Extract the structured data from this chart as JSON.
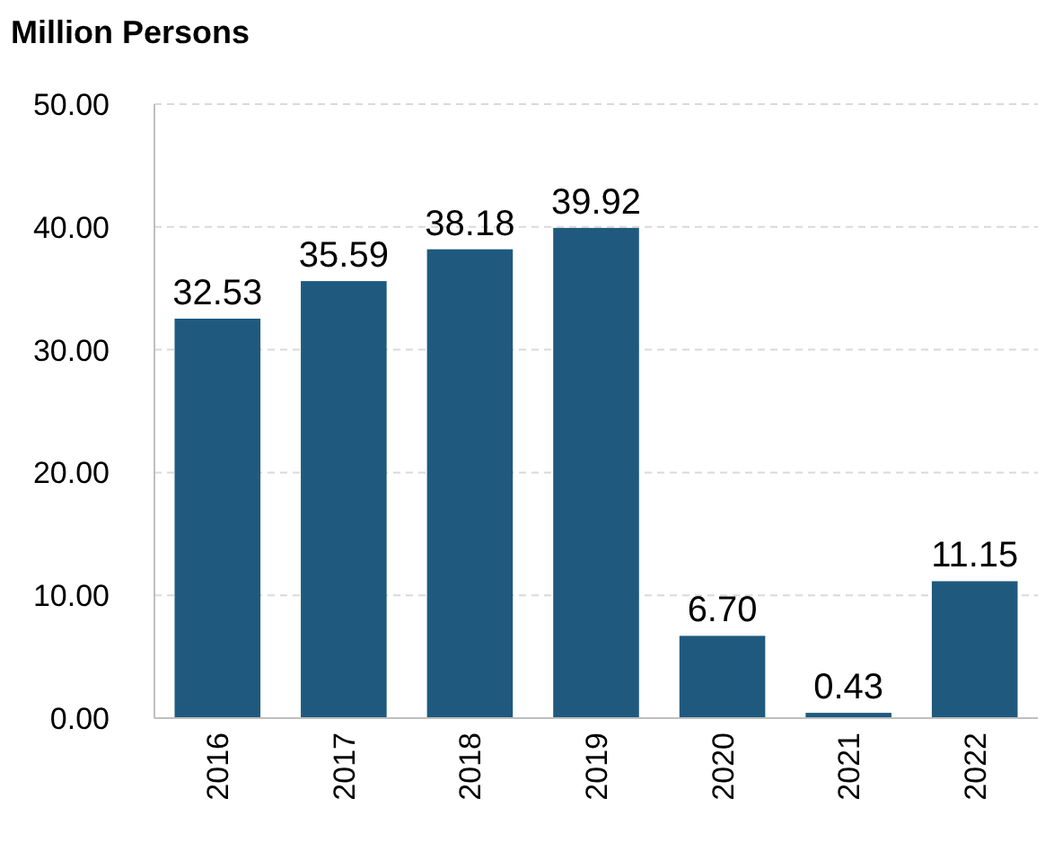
{
  "chart_data": {
    "type": "bar",
    "title": "Million Persons",
    "categories": [
      "2016",
      "2017",
      "2018",
      "2019",
      "2020",
      "2021",
      "2022"
    ],
    "values": [
      32.53,
      35.59,
      38.18,
      39.92,
      6.7,
      0.43,
      11.15
    ],
    "value_labels": [
      "32.53",
      "35.59",
      "38.18",
      "39.92",
      "6.70",
      "0.43",
      "11.15"
    ],
    "color": "#1f5a7e",
    "ylim": [
      0,
      50
    ],
    "yticks": [
      {
        "value": 0,
        "label": "0.00"
      },
      {
        "value": 10,
        "label": "10.00"
      },
      {
        "value": 20,
        "label": "20.00"
      },
      {
        "value": 30,
        "label": "30.00"
      },
      {
        "value": 40,
        "label": "40.00"
      },
      {
        "value": 50,
        "label": "50.00"
      }
    ],
    "grid": "y"
  }
}
